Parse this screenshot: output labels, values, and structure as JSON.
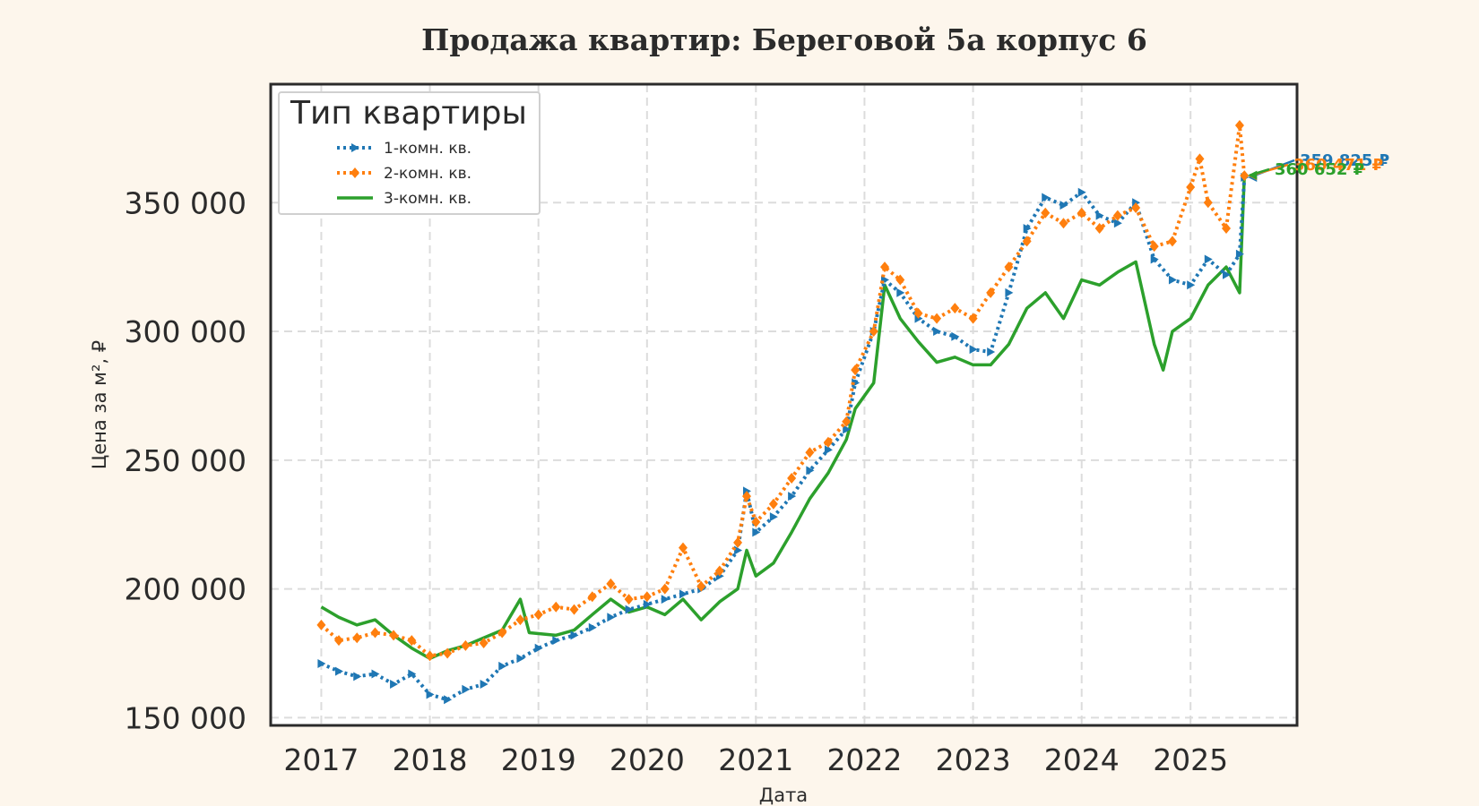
{
  "chart_data": {
    "type": "line",
    "title": "Продажа квартир: Береговой 5а корпус 6",
    "xlabel": "Дата",
    "ylabel": "Цена за м², ₽",
    "xlim": [
      "2016-07-15",
      "2025-12-25"
    ],
    "ylim": [
      147000,
      396000
    ],
    "x_ticks": [
      "2017",
      "2018",
      "2019",
      "2020",
      "2021",
      "2022",
      "2023",
      "2024",
      "2025"
    ],
    "y_ticks": [
      150000,
      200000,
      250000,
      300000,
      350000
    ],
    "y_tick_labels": [
      "150 000",
      "200 000",
      "250 000",
      "300 000",
      "350 000"
    ],
    "grid": true,
    "legend": {
      "title": "Тип квартиры",
      "location": "top-left"
    },
    "series": [
      {
        "name": "1-комн. кв.",
        "color": "#1f77b4",
        "style": "dotted",
        "marker": "triangle-right",
        "end_label": "359 825 ₽",
        "points": [
          [
            "2017-01-01",
            171000
          ],
          [
            "2017-03-01",
            168000
          ],
          [
            "2017-05-01",
            166000
          ],
          [
            "2017-07-01",
            167000
          ],
          [
            "2017-09-01",
            163000
          ],
          [
            "2017-11-01",
            167000
          ],
          [
            "2018-01-01",
            159000
          ],
          [
            "2018-03-01",
            157000
          ],
          [
            "2018-05-01",
            161000
          ],
          [
            "2018-07-01",
            163000
          ],
          [
            "2018-09-01",
            170000
          ],
          [
            "2018-11-01",
            173000
          ],
          [
            "2019-01-01",
            177000
          ],
          [
            "2019-03-01",
            180000
          ],
          [
            "2019-05-01",
            182000
          ],
          [
            "2019-07-01",
            185000
          ],
          [
            "2019-09-01",
            189000
          ],
          [
            "2019-11-01",
            192000
          ],
          [
            "2020-01-01",
            194000
          ],
          [
            "2020-03-01",
            196000
          ],
          [
            "2020-05-01",
            198000
          ],
          [
            "2020-07-01",
            200000
          ],
          [
            "2020-09-01",
            205000
          ],
          [
            "2020-11-01",
            215000
          ],
          [
            "2020-12-01",
            238000
          ],
          [
            "2021-01-01",
            222000
          ],
          [
            "2021-03-01",
            228000
          ],
          [
            "2021-05-01",
            236000
          ],
          [
            "2021-07-01",
            246000
          ],
          [
            "2021-09-01",
            254000
          ],
          [
            "2021-11-01",
            262000
          ],
          [
            "2021-12-01",
            280000
          ],
          [
            "2022-02-01",
            300000
          ],
          [
            "2022-03-10",
            320000
          ],
          [
            "2022-05-01",
            315000
          ],
          [
            "2022-07-01",
            305000
          ],
          [
            "2022-09-01",
            300000
          ],
          [
            "2022-11-01",
            298000
          ],
          [
            "2023-01-01",
            293000
          ],
          [
            "2023-03-01",
            292000
          ],
          [
            "2023-05-01",
            315000
          ],
          [
            "2023-07-01",
            340000
          ],
          [
            "2023-09-01",
            352000
          ],
          [
            "2023-11-01",
            349000
          ],
          [
            "2024-01-01",
            354000
          ],
          [
            "2024-03-01",
            345000
          ],
          [
            "2024-05-01",
            342000
          ],
          [
            "2024-07-01",
            350000
          ],
          [
            "2024-09-01",
            328000
          ],
          [
            "2024-11-01",
            320000
          ],
          [
            "2025-01-01",
            318000
          ],
          [
            "2025-03-01",
            328000
          ],
          [
            "2025-05-01",
            322000
          ],
          [
            "2025-06-15",
            330000
          ],
          [
            "2025-07-01",
            359825
          ]
        ]
      },
      {
        "name": "2-комн. кв.",
        "color": "#ff7f0e",
        "style": "dotted",
        "marker": "diamond",
        "end_label": "360 471 ₽",
        "points": [
          [
            "2017-01-01",
            186000
          ],
          [
            "2017-03-01",
            180000
          ],
          [
            "2017-05-01",
            181000
          ],
          [
            "2017-07-01",
            183000
          ],
          [
            "2017-09-01",
            182000
          ],
          [
            "2017-11-01",
            180000
          ],
          [
            "2018-01-01",
            174000
          ],
          [
            "2018-03-01",
            175000
          ],
          [
            "2018-05-01",
            178000
          ],
          [
            "2018-07-01",
            179000
          ],
          [
            "2018-09-01",
            183000
          ],
          [
            "2018-11-01",
            188000
          ],
          [
            "2019-01-01",
            190000
          ],
          [
            "2019-03-01",
            193000
          ],
          [
            "2019-05-01",
            192000
          ],
          [
            "2019-07-01",
            197000
          ],
          [
            "2019-09-01",
            202000
          ],
          [
            "2019-11-01",
            196000
          ],
          [
            "2020-01-01",
            197000
          ],
          [
            "2020-03-01",
            200000
          ],
          [
            "2020-05-01",
            216000
          ],
          [
            "2020-07-01",
            201000
          ],
          [
            "2020-09-01",
            207000
          ],
          [
            "2020-11-01",
            218000
          ],
          [
            "2020-12-01",
            236000
          ],
          [
            "2021-01-01",
            226000
          ],
          [
            "2021-03-01",
            233000
          ],
          [
            "2021-05-01",
            243000
          ],
          [
            "2021-07-01",
            253000
          ],
          [
            "2021-09-01",
            257000
          ],
          [
            "2021-11-01",
            265000
          ],
          [
            "2021-12-01",
            285000
          ],
          [
            "2022-02-01",
            300000
          ],
          [
            "2022-03-10",
            325000
          ],
          [
            "2022-05-01",
            320000
          ],
          [
            "2022-07-01",
            307000
          ],
          [
            "2022-09-01",
            305000
          ],
          [
            "2022-11-01",
            309000
          ],
          [
            "2023-01-01",
            305000
          ],
          [
            "2023-03-01",
            315000
          ],
          [
            "2023-05-01",
            325000
          ],
          [
            "2023-07-01",
            335000
          ],
          [
            "2023-09-01",
            346000
          ],
          [
            "2023-11-01",
            342000
          ],
          [
            "2024-01-01",
            346000
          ],
          [
            "2024-03-01",
            340000
          ],
          [
            "2024-05-01",
            345000
          ],
          [
            "2024-07-01",
            348000
          ],
          [
            "2024-09-01",
            333000
          ],
          [
            "2024-11-01",
            335000
          ],
          [
            "2025-01-01",
            356000
          ],
          [
            "2025-02-01",
            367000
          ],
          [
            "2025-03-01",
            350000
          ],
          [
            "2025-05-01",
            340000
          ],
          [
            "2025-06-15",
            380000
          ],
          [
            "2025-07-01",
            360471
          ]
        ]
      },
      {
        "name": "3-комн. кв.",
        "color": "#2ca02c",
        "style": "solid",
        "marker": "none",
        "end_label": "360 652 ₽",
        "points": [
          [
            "2017-01-01",
            193000
          ],
          [
            "2017-03-01",
            189000
          ],
          [
            "2017-05-01",
            186000
          ],
          [
            "2017-07-01",
            188000
          ],
          [
            "2017-09-01",
            182000
          ],
          [
            "2017-11-01",
            177000
          ],
          [
            "2018-01-01",
            173000
          ],
          [
            "2018-03-01",
            176000
          ],
          [
            "2018-05-01",
            178000
          ],
          [
            "2018-07-01",
            181000
          ],
          [
            "2018-09-01",
            184000
          ],
          [
            "2018-11-01",
            196000
          ],
          [
            "2018-12-01",
            183000
          ],
          [
            "2019-03-01",
            182000
          ],
          [
            "2019-05-01",
            184000
          ],
          [
            "2019-07-01",
            190000
          ],
          [
            "2019-09-01",
            196000
          ],
          [
            "2019-11-01",
            191000
          ],
          [
            "2020-01-01",
            193000
          ],
          [
            "2020-03-01",
            190000
          ],
          [
            "2020-05-01",
            196000
          ],
          [
            "2020-07-01",
            188000
          ],
          [
            "2020-09-01",
            195000
          ],
          [
            "2020-11-01",
            200000
          ],
          [
            "2020-12-01",
            215000
          ],
          [
            "2021-01-01",
            205000
          ],
          [
            "2021-03-01",
            210000
          ],
          [
            "2021-05-01",
            222000
          ],
          [
            "2021-07-01",
            235000
          ],
          [
            "2021-09-01",
            245000
          ],
          [
            "2021-11-01",
            258000
          ],
          [
            "2021-12-01",
            270000
          ],
          [
            "2022-02-01",
            280000
          ],
          [
            "2022-03-10",
            318000
          ],
          [
            "2022-05-01",
            305000
          ],
          [
            "2022-07-01",
            296000
          ],
          [
            "2022-09-01",
            288000
          ],
          [
            "2022-11-01",
            290000
          ],
          [
            "2023-01-01",
            287000
          ],
          [
            "2023-03-01",
            287000
          ],
          [
            "2023-05-01",
            295000
          ],
          [
            "2023-07-01",
            309000
          ],
          [
            "2023-09-01",
            315000
          ],
          [
            "2023-11-01",
            305000
          ],
          [
            "2024-01-01",
            320000
          ],
          [
            "2024-03-01",
            318000
          ],
          [
            "2024-05-01",
            323000
          ],
          [
            "2024-07-01",
            327000
          ],
          [
            "2024-09-01",
            295000
          ],
          [
            "2024-10-01",
            285000
          ],
          [
            "2024-11-01",
            300000
          ],
          [
            "2025-01-01",
            305000
          ],
          [
            "2025-03-01",
            318000
          ],
          [
            "2025-05-01",
            325000
          ],
          [
            "2025-06-15",
            315000
          ],
          [
            "2025-07-01",
            360652
          ]
        ]
      }
    ]
  }
}
